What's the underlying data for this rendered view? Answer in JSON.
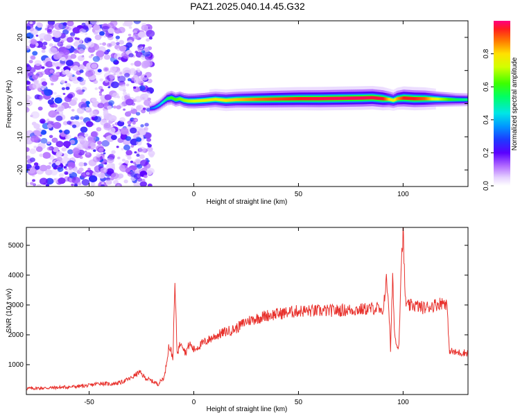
{
  "title": "PAZ1.2025.040.14.45.G32",
  "chart_data": [
    {
      "type": "heatmap",
      "xlabel": "Height of straight line (km)",
      "ylabel": "Frequency (Hz)",
      "xlim": [
        -80,
        131
      ],
      "ylim": [
        -25,
        25
      ],
      "xticks": [
        -50,
        0,
        50,
        100
      ],
      "yticks": [
        -20,
        -10,
        0,
        10,
        20
      ],
      "noise_region": {
        "x": [
          -80,
          -20
        ],
        "y": [
          -25,
          25
        ],
        "amplitude": [
          0.0,
          0.25
        ]
      },
      "signal_trace": {
        "x": [
          -21,
          -19,
          -17,
          -15,
          -13,
          -11,
          -9,
          -7,
          -5,
          -3,
          0,
          5,
          10,
          15,
          20,
          30,
          40,
          50,
          60,
          70,
          80,
          85,
          90,
          93,
          95,
          97,
          100,
          105,
          110,
          115,
          120,
          125,
          131
        ],
        "freq": [
          -1.5,
          -1.2,
          -0.5,
          0.5,
          1.5,
          1.8,
          1.2,
          1.5,
          1.0,
          0.8,
          0.8,
          1.0,
          1.3,
          1.0,
          1.2,
          1.3,
          1.4,
          1.5,
          1.5,
          1.6,
          1.7,
          1.8,
          1.5,
          1.3,
          1.0,
          1.5,
          1.7,
          1.5,
          1.5,
          1.4,
          1.3,
          1.2,
          1.2
        ],
        "amplitude": [
          0.3,
          0.35,
          0.4,
          0.45,
          0.55,
          0.6,
          0.62,
          0.65,
          0.68,
          0.7,
          0.72,
          0.74,
          0.76,
          0.8,
          0.82,
          0.88,
          0.92,
          0.95,
          0.97,
          0.98,
          0.98,
          0.97,
          0.96,
          0.8,
          0.75,
          0.85,
          0.95,
          0.95,
          0.9,
          0.75,
          0.65,
          0.55,
          0.5
        ]
      },
      "colorbar": {
        "label": "Normalized spectral amplitude",
        "range": [
          0,
          1
        ],
        "ticks": [
          0.0,
          0.2,
          0.4,
          0.6,
          0.8
        ],
        "tick_labels": [
          "0.0",
          "0.2",
          "0.4",
          "0.6",
          "0.8"
        ]
      }
    },
    {
      "type": "line",
      "xlabel": "Height of straight line (km)",
      "ylabel": "SNR (10 * v/v)",
      "xlim": [
        -80,
        131
      ],
      "ylim": [
        0,
        5600
      ],
      "xticks": [
        -50,
        0,
        50,
        100
      ],
      "yticks": [
        1000,
        2000,
        3000,
        4000,
        5000
      ],
      "color": "#e8312c",
      "series": [
        {
          "x": [
            -80,
            -70,
            -60,
            -50,
            -45,
            -40,
            -35,
            -30,
            -26,
            -23,
            -20,
            -17,
            -14,
            -12,
            -11,
            -10,
            -9,
            -8,
            -6,
            -4,
            -2,
            0,
            5,
            10,
            15,
            20,
            25,
            30,
            35,
            40,
            45,
            50,
            60,
            70,
            80,
            88,
            90,
            92,
            93,
            94,
            95,
            96,
            97,
            98,
            99,
            100,
            101,
            102,
            105,
            110,
            115,
            120,
            121,
            122,
            123,
            125,
            128,
            131
          ],
          "y": [
            200,
            220,
            250,
            300,
            380,
            350,
            400,
            550,
            750,
            550,
            450,
            350,
            600,
            1600,
            1500,
            1200,
            3700,
            1400,
            1800,
            1400,
            1700,
            1500,
            1750,
            1950,
            2100,
            2200,
            2450,
            2550,
            2650,
            2700,
            2750,
            2800,
            2800,
            2820,
            2850,
            2900,
            2650,
            3800,
            3200,
            1500,
            3900,
            2000,
            1600,
            1700,
            4200,
            5500,
            3200,
            2950,
            3000,
            2900,
            3000,
            3100,
            3000,
            1500,
            1450,
            1400,
            1400,
            1400
          ]
        }
      ]
    }
  ]
}
